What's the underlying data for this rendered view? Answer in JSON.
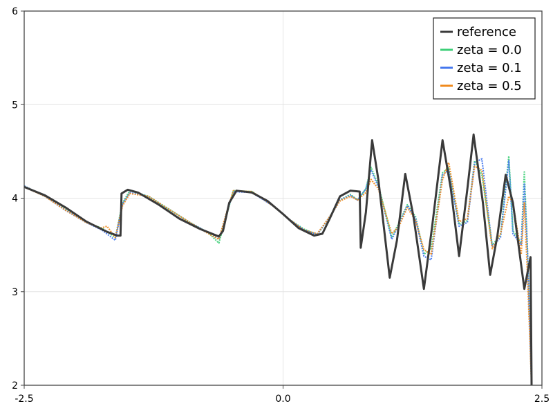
{
  "chart_data": {
    "type": "line",
    "title": "",
    "xlabel": "",
    "ylabel": "",
    "xlim": [
      -2.5,
      2.5
    ],
    "ylim": [
      2,
      6
    ],
    "xticks": [
      -2.5,
      0.0,
      2.5
    ],
    "xtick_labels": [
      "-2.5",
      "0.0",
      "2.5"
    ],
    "yticks": [
      2,
      3,
      4,
      5,
      6
    ],
    "ytick_labels": [
      "2",
      "3",
      "4",
      "5",
      "6"
    ],
    "grid": true,
    "legend_position": "top-right",
    "series": [
      {
        "name": "reference",
        "color": "#3a3a3a",
        "style": "solid",
        "points": [
          [
            -2.5,
            4.12
          ],
          [
            -2.3,
            4.03
          ],
          [
            -2.1,
            3.9
          ],
          [
            -1.9,
            3.75
          ],
          [
            -1.7,
            3.64
          ],
          [
            -1.6,
            3.6
          ],
          [
            -1.57,
            3.6
          ],
          [
            -1.56,
            4.05
          ],
          [
            -1.5,
            4.09
          ],
          [
            -1.4,
            4.06
          ],
          [
            -1.2,
            3.93
          ],
          [
            -1.0,
            3.78
          ],
          [
            -0.8,
            3.67
          ],
          [
            -0.62,
            3.59
          ],
          [
            -0.58,
            3.65
          ],
          [
            -0.52,
            3.95
          ],
          [
            -0.45,
            4.08
          ],
          [
            -0.3,
            4.06
          ],
          [
            -0.15,
            3.97
          ],
          [
            0.0,
            3.83
          ],
          [
            0.15,
            3.68
          ],
          [
            0.3,
            3.6
          ],
          [
            0.38,
            3.62
          ],
          [
            0.45,
            3.78
          ],
          [
            0.55,
            4.02
          ],
          [
            0.65,
            4.08
          ],
          [
            0.74,
            4.07
          ],
          [
            0.75,
            3.47
          ],
          [
            0.8,
            3.85
          ],
          [
            0.86,
            4.62
          ],
          [
            0.92,
            4.2
          ],
          [
            1.03,
            3.15
          ],
          [
            1.1,
            3.55
          ],
          [
            1.18,
            4.26
          ],
          [
            1.26,
            3.8
          ],
          [
            1.36,
            3.03
          ],
          [
            1.44,
            3.7
          ],
          [
            1.54,
            4.62
          ],
          [
            1.62,
            4.1
          ],
          [
            1.7,
            3.38
          ],
          [
            1.78,
            4.1
          ],
          [
            1.84,
            4.68
          ],
          [
            1.93,
            3.95
          ],
          [
            2.0,
            3.18
          ],
          [
            2.07,
            3.6
          ],
          [
            2.15,
            4.25
          ],
          [
            2.22,
            3.95
          ],
          [
            2.33,
            3.03
          ],
          [
            2.39,
            3.37
          ],
          [
            2.4,
            2.0
          ]
        ]
      },
      {
        "name": "zeta = 0.0",
        "color": "#3ecf78",
        "style": "dotted",
        "points": [
          [
            -2.5,
            4.13
          ],
          [
            -2.3,
            4.02
          ],
          [
            -2.1,
            3.88
          ],
          [
            -1.9,
            3.74
          ],
          [
            -1.75,
            3.68
          ],
          [
            -1.62,
            3.58
          ],
          [
            -1.55,
            3.95
          ],
          [
            -1.48,
            4.08
          ],
          [
            -1.3,
            4.02
          ],
          [
            -1.1,
            3.88
          ],
          [
            -0.9,
            3.74
          ],
          [
            -0.72,
            3.63
          ],
          [
            -0.62,
            3.52
          ],
          [
            -0.55,
            3.8
          ],
          [
            -0.48,
            4.08
          ],
          [
            -0.3,
            4.07
          ],
          [
            -0.1,
            3.92
          ],
          [
            0.05,
            3.78
          ],
          [
            0.2,
            3.67
          ],
          [
            0.33,
            3.61
          ],
          [
            0.45,
            3.8
          ],
          [
            0.55,
            3.98
          ],
          [
            0.65,
            4.04
          ],
          [
            0.72,
            3.98
          ],
          [
            0.8,
            4.1
          ],
          [
            0.85,
            4.33
          ],
          [
            0.92,
            4.14
          ],
          [
            1.05,
            3.58
          ],
          [
            1.12,
            3.74
          ],
          [
            1.2,
            3.93
          ],
          [
            1.28,
            3.8
          ],
          [
            1.36,
            3.4
          ],
          [
            1.43,
            3.46
          ],
          [
            1.54,
            4.27
          ],
          [
            1.6,
            4.33
          ],
          [
            1.7,
            3.72
          ],
          [
            1.78,
            3.76
          ],
          [
            1.85,
            4.4
          ],
          [
            1.92,
            4.25
          ],
          [
            2.02,
            3.5
          ],
          [
            2.1,
            3.6
          ],
          [
            2.18,
            4.45
          ],
          [
            2.22,
            3.65
          ],
          [
            2.3,
            3.52
          ],
          [
            2.33,
            4.28
          ],
          [
            2.36,
            3.45
          ],
          [
            2.4,
            2.0
          ]
        ]
      },
      {
        "name": "zeta = 0.1",
        "color": "#4477ee",
        "style": "dotted",
        "points": [
          [
            -2.5,
            4.13
          ],
          [
            -2.3,
            4.02
          ],
          [
            -2.1,
            3.87
          ],
          [
            -1.9,
            3.74
          ],
          [
            -1.75,
            3.66
          ],
          [
            -1.62,
            3.55
          ],
          [
            -1.55,
            3.94
          ],
          [
            -1.48,
            4.06
          ],
          [
            -1.3,
            4.02
          ],
          [
            -1.1,
            3.88
          ],
          [
            -0.9,
            3.74
          ],
          [
            -0.72,
            3.63
          ],
          [
            -0.62,
            3.56
          ],
          [
            -0.55,
            3.82
          ],
          [
            -0.48,
            4.07
          ],
          [
            -0.3,
            4.06
          ],
          [
            -0.1,
            3.92
          ],
          [
            0.05,
            3.78
          ],
          [
            0.2,
            3.66
          ],
          [
            0.33,
            3.61
          ],
          [
            0.45,
            3.8
          ],
          [
            0.55,
            3.98
          ],
          [
            0.65,
            4.03
          ],
          [
            0.72,
            3.98
          ],
          [
            0.8,
            4.1
          ],
          [
            0.85,
            4.3
          ],
          [
            0.92,
            4.12
          ],
          [
            1.05,
            3.56
          ],
          [
            1.12,
            3.72
          ],
          [
            1.2,
            3.92
          ],
          [
            1.28,
            3.78
          ],
          [
            1.36,
            3.38
          ],
          [
            1.43,
            3.34
          ],
          [
            1.54,
            4.25
          ],
          [
            1.6,
            4.3
          ],
          [
            1.7,
            3.7
          ],
          [
            1.78,
            3.74
          ],
          [
            1.85,
            4.38
          ],
          [
            1.92,
            4.42
          ],
          [
            2.02,
            3.48
          ],
          [
            2.1,
            3.58
          ],
          [
            2.18,
            4.4
          ],
          [
            2.22,
            3.62
          ],
          [
            2.3,
            3.5
          ],
          [
            2.33,
            4.15
          ],
          [
            2.36,
            3.45
          ],
          [
            2.4,
            2.0
          ]
        ]
      },
      {
        "name": "zeta = 0.5",
        "color": "#f08a1c",
        "style": "dotted",
        "points": [
          [
            -2.5,
            4.12
          ],
          [
            -2.3,
            4.02
          ],
          [
            -2.1,
            3.87
          ],
          [
            -1.9,
            3.74
          ],
          [
            -1.76,
            3.68
          ],
          [
            -1.7,
            3.7
          ],
          [
            -1.62,
            3.58
          ],
          [
            -1.55,
            3.92
          ],
          [
            -1.48,
            4.05
          ],
          [
            -1.3,
            4.02
          ],
          [
            -1.1,
            3.88
          ],
          [
            -0.9,
            3.74
          ],
          [
            -0.72,
            3.62
          ],
          [
            -0.62,
            3.56
          ],
          [
            -0.55,
            3.83
          ],
          [
            -0.48,
            4.08
          ],
          [
            -0.3,
            4.07
          ],
          [
            -0.1,
            3.92
          ],
          [
            0.05,
            3.78
          ],
          [
            0.2,
            3.66
          ],
          [
            0.33,
            3.62
          ],
          [
            0.45,
            3.8
          ],
          [
            0.55,
            3.97
          ],
          [
            0.65,
            4.02
          ],
          [
            0.72,
            3.98
          ],
          [
            0.8,
            4.06
          ],
          [
            0.85,
            4.2
          ],
          [
            0.92,
            4.1
          ],
          [
            1.05,
            3.62
          ],
          [
            1.12,
            3.7
          ],
          [
            1.2,
            3.9
          ],
          [
            1.28,
            3.76
          ],
          [
            1.36,
            3.45
          ],
          [
            1.43,
            3.4
          ],
          [
            1.54,
            4.2
          ],
          [
            1.6,
            4.38
          ],
          [
            1.7,
            3.75
          ],
          [
            1.78,
            3.78
          ],
          [
            1.85,
            4.34
          ],
          [
            1.92,
            4.3
          ],
          [
            2.02,
            3.46
          ],
          [
            2.1,
            3.62
          ],
          [
            2.18,
            4.02
          ],
          [
            2.22,
            3.95
          ],
          [
            2.3,
            3.4
          ],
          [
            2.33,
            3.95
          ],
          [
            2.36,
            3.2
          ],
          [
            2.4,
            2.0
          ]
        ]
      }
    ]
  }
}
